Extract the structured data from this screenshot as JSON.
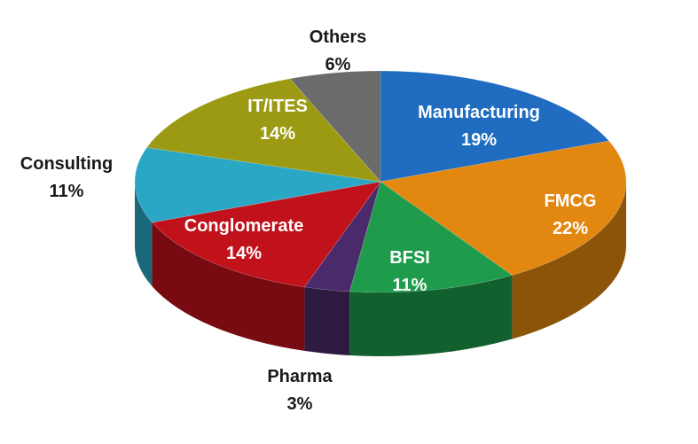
{
  "chart_data": {
    "type": "pie",
    "style": "3d",
    "title": "",
    "slices": [
      {
        "label": "Manufacturing",
        "value": 19,
        "color": "#1f6cc0"
      },
      {
        "label": "FMCG",
        "value": 22,
        "color": "#e2870f"
      },
      {
        "label": "BFSI",
        "value": 11,
        "color": "#1e9b4b"
      },
      {
        "label": "Pharma",
        "value": 3,
        "color": "#4b2a6b"
      },
      {
        "label": "Conglomerate",
        "value": 14,
        "color": "#c1121b"
      },
      {
        "label": "Consulting",
        "value": 11,
        "color": "#2ba7c6"
      },
      {
        "label": "IT/ITES",
        "value": 14,
        "color": "#9b9a12"
      },
      {
        "label": "Others",
        "value": 6,
        "color": "#6b6b6b"
      }
    ]
  }
}
